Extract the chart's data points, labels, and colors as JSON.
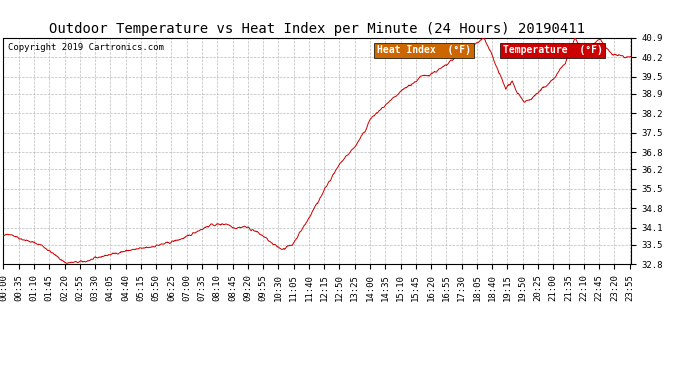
{
  "title": "Outdoor Temperature vs Heat Index per Minute (24 Hours) 20190411",
  "copyright": "Copyright 2019 Cartronics.com",
  "ylim": [
    32.8,
    40.9
  ],
  "yticks": [
    32.8,
    33.5,
    34.1,
    34.8,
    35.5,
    36.2,
    36.8,
    37.5,
    38.2,
    38.9,
    39.5,
    40.2,
    40.9
  ],
  "background_color": "#ffffff",
  "grid_color": "#bbbbbb",
  "line_color": "#cc0000",
  "legend_heat_bg": "#cc6600",
  "legend_temp_bg": "#cc0000",
  "legend_text_color": "#ffffff",
  "title_fontsize": 10,
  "copyright_fontsize": 6.5,
  "tick_fontsize": 6.5,
  "legend_fontsize": 7,
  "tick_interval": 35
}
